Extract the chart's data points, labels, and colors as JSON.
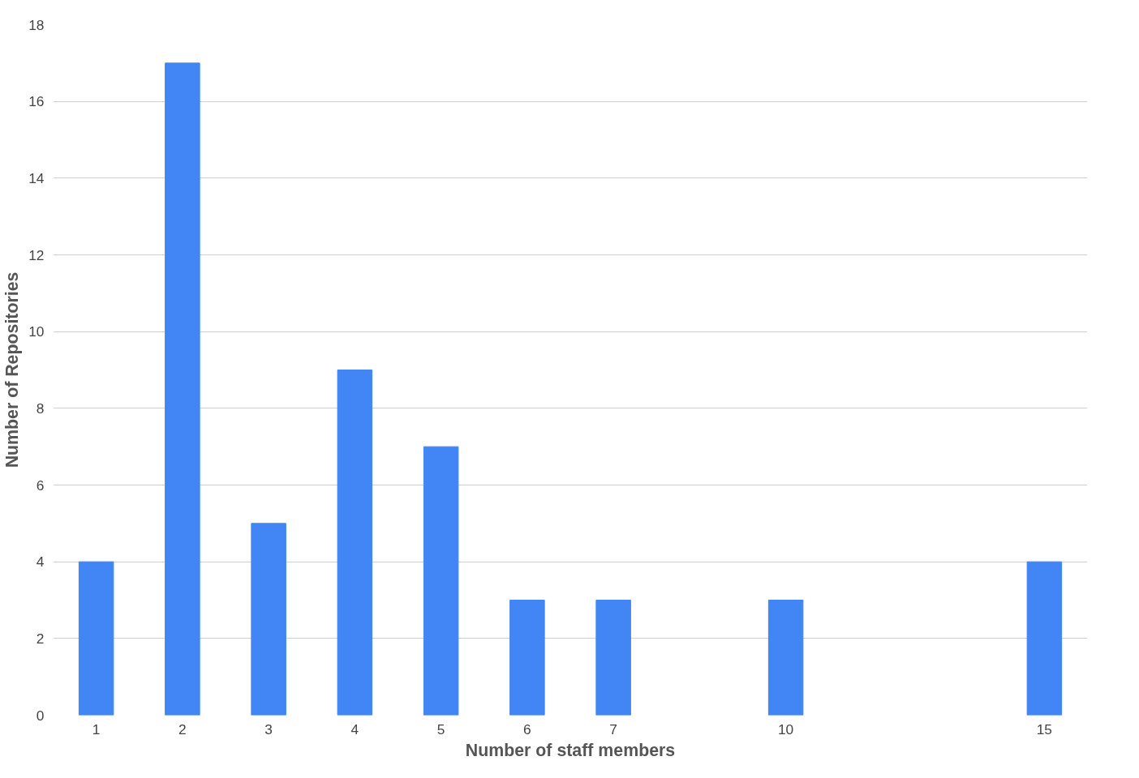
{
  "chart_data": {
    "type": "bar",
    "xlabel": "Number of staff members",
    "ylabel": "Number of Repositories",
    "categories": [
      "1",
      "2",
      "3",
      "4",
      "5",
      "6",
      "7",
      null,
      "10",
      null,
      null,
      "15"
    ],
    "values": [
      4,
      17,
      5,
      9,
      7,
      3,
      3,
      null,
      3,
      null,
      null,
      4
    ],
    "color": "#4285f4",
    "ylim": [
      0,
      18
    ],
    "yticks": [
      0,
      2,
      4,
      6,
      8,
      10,
      12,
      14,
      16,
      18
    ],
    "grid": "y"
  }
}
